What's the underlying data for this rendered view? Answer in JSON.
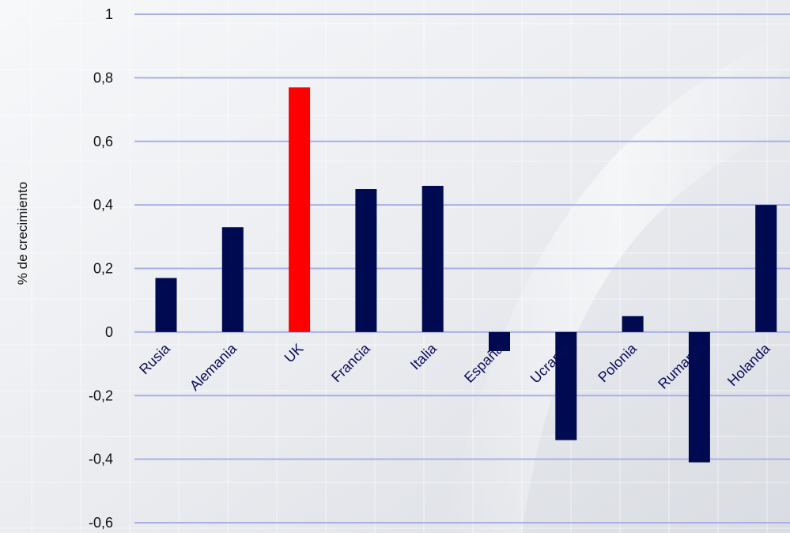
{
  "chart_data": {
    "type": "bar",
    "title": "",
    "xlabel": "",
    "ylabel": "% de crecimiento",
    "ylim": [
      -0.6,
      1
    ],
    "yticks": [
      1,
      0.8,
      0.6,
      0.4,
      0.2,
      0,
      -0.2,
      -0.4,
      -0.6
    ],
    "ytick_labels": [
      "1",
      "0,8",
      "0,6",
      "0,4",
      "0,2",
      "0",
      "-0,2",
      "-0,4",
      "-0,6"
    ],
    "categories": [
      "Rusia",
      "Alemania",
      "UK",
      "Francia",
      "Italia",
      "España",
      "Ucrania",
      "Polonia",
      "Rumania",
      "Holanda"
    ],
    "values": [
      0.17,
      0.33,
      0.77,
      0.45,
      0.46,
      -0.06,
      -0.34,
      0.05,
      -0.41,
      0.4
    ],
    "colors": {
      "default_bar": "#000a50",
      "highlight_bar": "#ff0000",
      "gridline": "#aab0e6"
    },
    "highlight_category": "UK",
    "grid": true,
    "legend": "none"
  }
}
